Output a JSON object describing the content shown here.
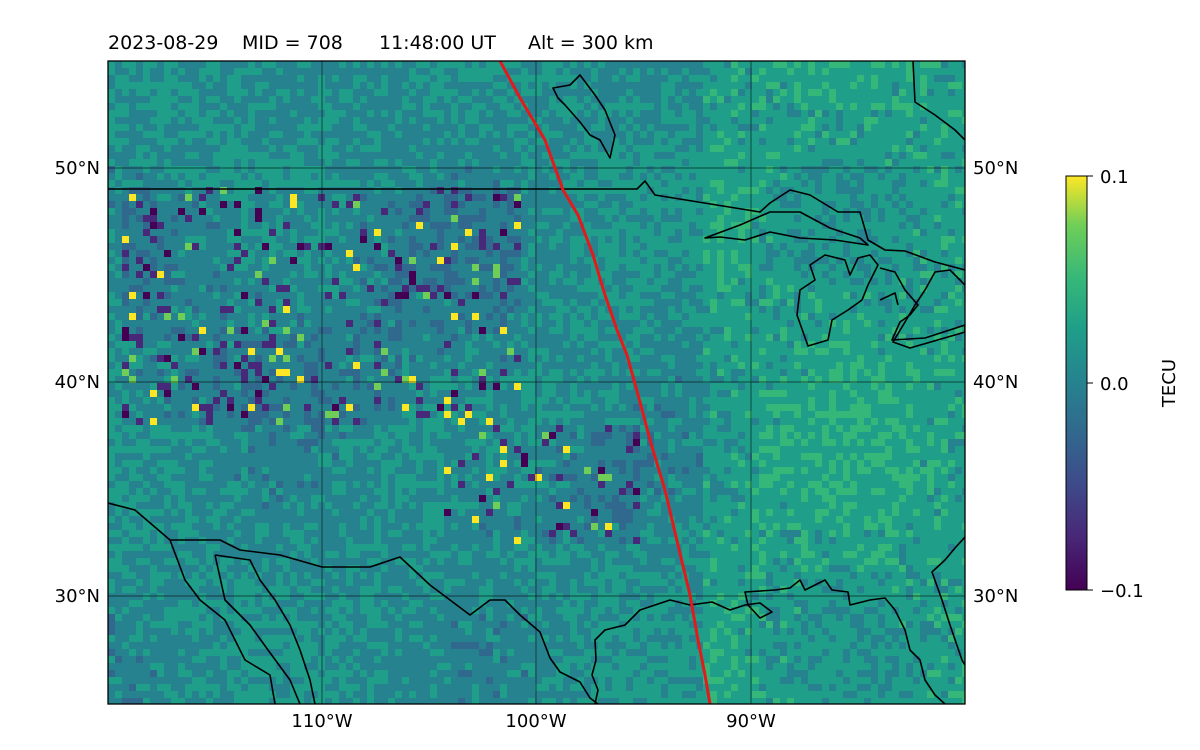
{
  "title": {
    "date": "2023-08-29",
    "mid": "MID = 708",
    "time": "11:48:00  UT",
    "alt": "Alt = 300 km"
  },
  "axes": {
    "lat_labels": [
      "50°N",
      "40°N",
      "30°N"
    ],
    "lon_labels": [
      "110°W",
      "100°W",
      "90°W"
    ]
  },
  "colorbar": {
    "label": "TECU",
    "ticks": [
      "0.1",
      "0.0",
      "−0.1"
    ],
    "min": -0.1,
    "max": 0.1,
    "colormap": "viridis"
  },
  "map": {
    "lon_range": [
      -120,
      -80
    ],
    "lat_range": [
      25,
      55
    ],
    "grid_lats": [
      30,
      40,
      50
    ],
    "grid_lons": [
      -110,
      -100,
      -90
    ],
    "terminator_color": "#e31a1c",
    "coastline_color": "#000000"
  }
}
